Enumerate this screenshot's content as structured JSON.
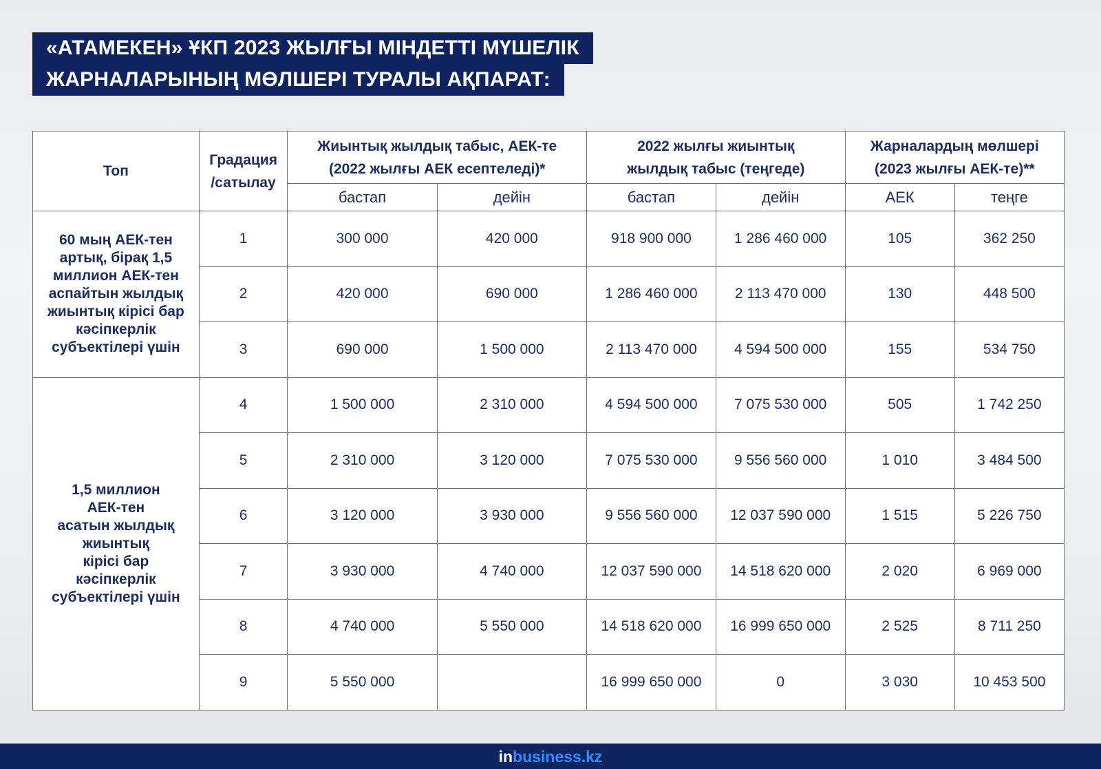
{
  "title": {
    "line1": "«АТАМЕКЕН» ҰКП 2023 ЖЫЛҒЫ МІНДЕТТІ МҮШЕЛІК",
    "line2": "ЖАРНАЛАРЫНЫҢ МӨЛШЕРІ ТУРАЛЫ АҚПАРАТ:"
  },
  "table": {
    "headers": {
      "top": "Топ",
      "gradation_line1": "Градация",
      "gradation_line2": "/сатылау",
      "income_mci_line1": "Жиынтық жылдық табыс, АЕК-те",
      "income_mci_line2": "(2022 жылғы АЕК есептеледі)*",
      "income_2022_line1": "2022 жылғы жиынтық",
      "income_2022_line2": "жылдық табыс (теңгеде)",
      "fees_line1": "Жарналардың мөлшері",
      "fees_line2": "(2023 жылғы АЕК-те)**"
    },
    "subheaders": {
      "from1": "бастап",
      "to1": "дейін",
      "from2": "бастап",
      "to2": "дейін",
      "mci": "АЕК",
      "tenge": "теңге"
    },
    "groups": [
      {
        "lines": [
          "60 мың АЕК-тен",
          "артық, бірақ 1,5",
          "миллион АЕК-тен",
          "аспайтын жылдық",
          "жиынтық кірісі бар",
          "кәсіпкерлік",
          "субъектілері үшін"
        ]
      },
      {
        "lines": [
          "1,5 миллион",
          "АЕК-тен",
          "асатын жылдық",
          "жиынтық",
          "кірісі бар",
          "кәсіпкерлік",
          "субъектілері үшін"
        ]
      }
    ],
    "rows": [
      {
        "grade": "1",
        "mci_from": "300 000",
        "mci_to": "420 000",
        "tg_from": "918 900 000",
        "tg_to": "1 286 460 000",
        "fee_mci": "105",
        "fee_tg": "362 250"
      },
      {
        "grade": "2",
        "mci_from": "420 000",
        "mci_to": "690 000",
        "tg_from": "1 286 460 000",
        "tg_to": "2 113 470 000",
        "fee_mci": "130",
        "fee_tg": "448 500"
      },
      {
        "grade": "3",
        "mci_from": "690 000",
        "mci_to": "1 500 000",
        "tg_from": "2 113 470 000",
        "tg_to": "4 594 500 000",
        "fee_mci": "155",
        "fee_tg": "534 750"
      },
      {
        "grade": "4",
        "mci_from": "1 500 000",
        "mci_to": "2 310 000",
        "tg_from": "4 594 500 000",
        "tg_to": "7 075 530 000",
        "fee_mci": "505",
        "fee_tg": "1 742 250"
      },
      {
        "grade": "5",
        "mci_from": "2 310 000",
        "mci_to": "3 120 000",
        "tg_from": "7 075 530 000",
        "tg_to": "9 556 560 000",
        "fee_mci": "1 010",
        "fee_tg": "3 484 500"
      },
      {
        "grade": "6",
        "mci_from": "3 120 000",
        "mci_to": "3 930 000",
        "tg_from": "9 556 560 000",
        "tg_to": "12 037 590 000",
        "fee_mci": "1 515",
        "fee_tg": "5 226 750"
      },
      {
        "grade": "7",
        "mci_from": "3 930 000",
        "mci_to": "4 740 000",
        "tg_from": "12 037 590 000",
        "tg_to": "14 518 620 000",
        "fee_mci": "2 020",
        "fee_tg": "6 969 000"
      },
      {
        "grade": "8",
        "mci_from": "4 740 000",
        "mci_to": "5 550 000",
        "tg_from": "14 518 620 000",
        "tg_to": "16 999 650 000",
        "fee_mci": "2 525",
        "fee_tg": "8 711 250"
      },
      {
        "grade": "9",
        "mci_from": "5 550 000",
        "mci_to": "",
        "tg_from": "16 999 650 000",
        "tg_to": "0",
        "fee_mci": "3 030",
        "fee_tg": "10 453 500"
      }
    ]
  },
  "footer": {
    "logo_prefix": "in",
    "logo_rest": "business.kz"
  },
  "colors": {
    "brand_navy": "#0f2461",
    "logo_accent": "#2f8cff",
    "text_navy": "#1b2d5e"
  }
}
